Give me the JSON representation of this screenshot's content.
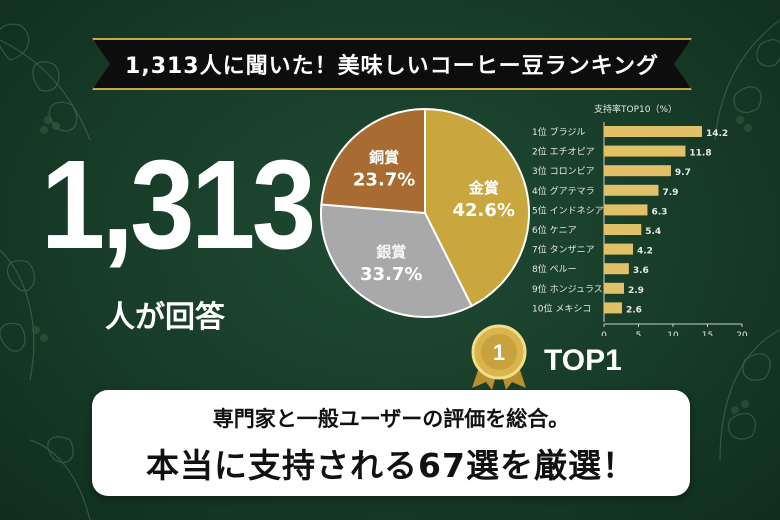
{
  "banner": {
    "title": "1,313人に聞いた！美味しいコーヒー豆ランキング"
  },
  "respondents": {
    "number": "1,313",
    "label": "人が回答"
  },
  "colors": {
    "background": "#173c28",
    "gold": "#c9a63e",
    "silver": "#a9a9a9",
    "bronze": "#a86c32",
    "bar": "#e0c168"
  },
  "chart_data": [
    {
      "type": "pie",
      "slices": [
        {
          "name": "金賞",
          "value": 42.6,
          "label": "42.6%",
          "color": "#c9a63e"
        },
        {
          "name": "銀賞",
          "value": 33.7,
          "label": "33.7%",
          "color": "#a9a9a9"
        },
        {
          "name": "銅賞",
          "value": 23.7,
          "label": "23.7%",
          "color": "#a86c32"
        }
      ]
    },
    {
      "type": "bar",
      "orientation": "horizontal",
      "title": "支持率TOP10（%）",
      "categories": [
        "1位 ブラジル",
        "2位 エチオピア",
        "3位 コロンビア",
        "4位 グアテマラ",
        "5位 インドネシア",
        "6位 ケニア",
        "7位 タンザニア",
        "8位 ペルー",
        "9位 ホンジュラス",
        "10位 メキシコ"
      ],
      "values": [
        14.2,
        11.8,
        9.7,
        7.9,
        6.3,
        5.4,
        4.2,
        3.6,
        2.9,
        2.6
      ],
      "value_labels": [
        "14.2",
        "11.8",
        "9.7",
        "7.9",
        "6.3",
        "5.4",
        "4.2",
        "3.6",
        "2.9",
        "2.6"
      ],
      "xlim": [
        0,
        20
      ],
      "xticks": [
        "0",
        "5",
        "10",
        "15",
        "20"
      ],
      "grid": false,
      "legend": "none"
    }
  ],
  "medal": {
    "number": "1",
    "label": "TOP1"
  },
  "message": {
    "line1": "専門家と一般ユーザーの評価を総合。",
    "line2": "本当に支持される67選を厳選！"
  }
}
